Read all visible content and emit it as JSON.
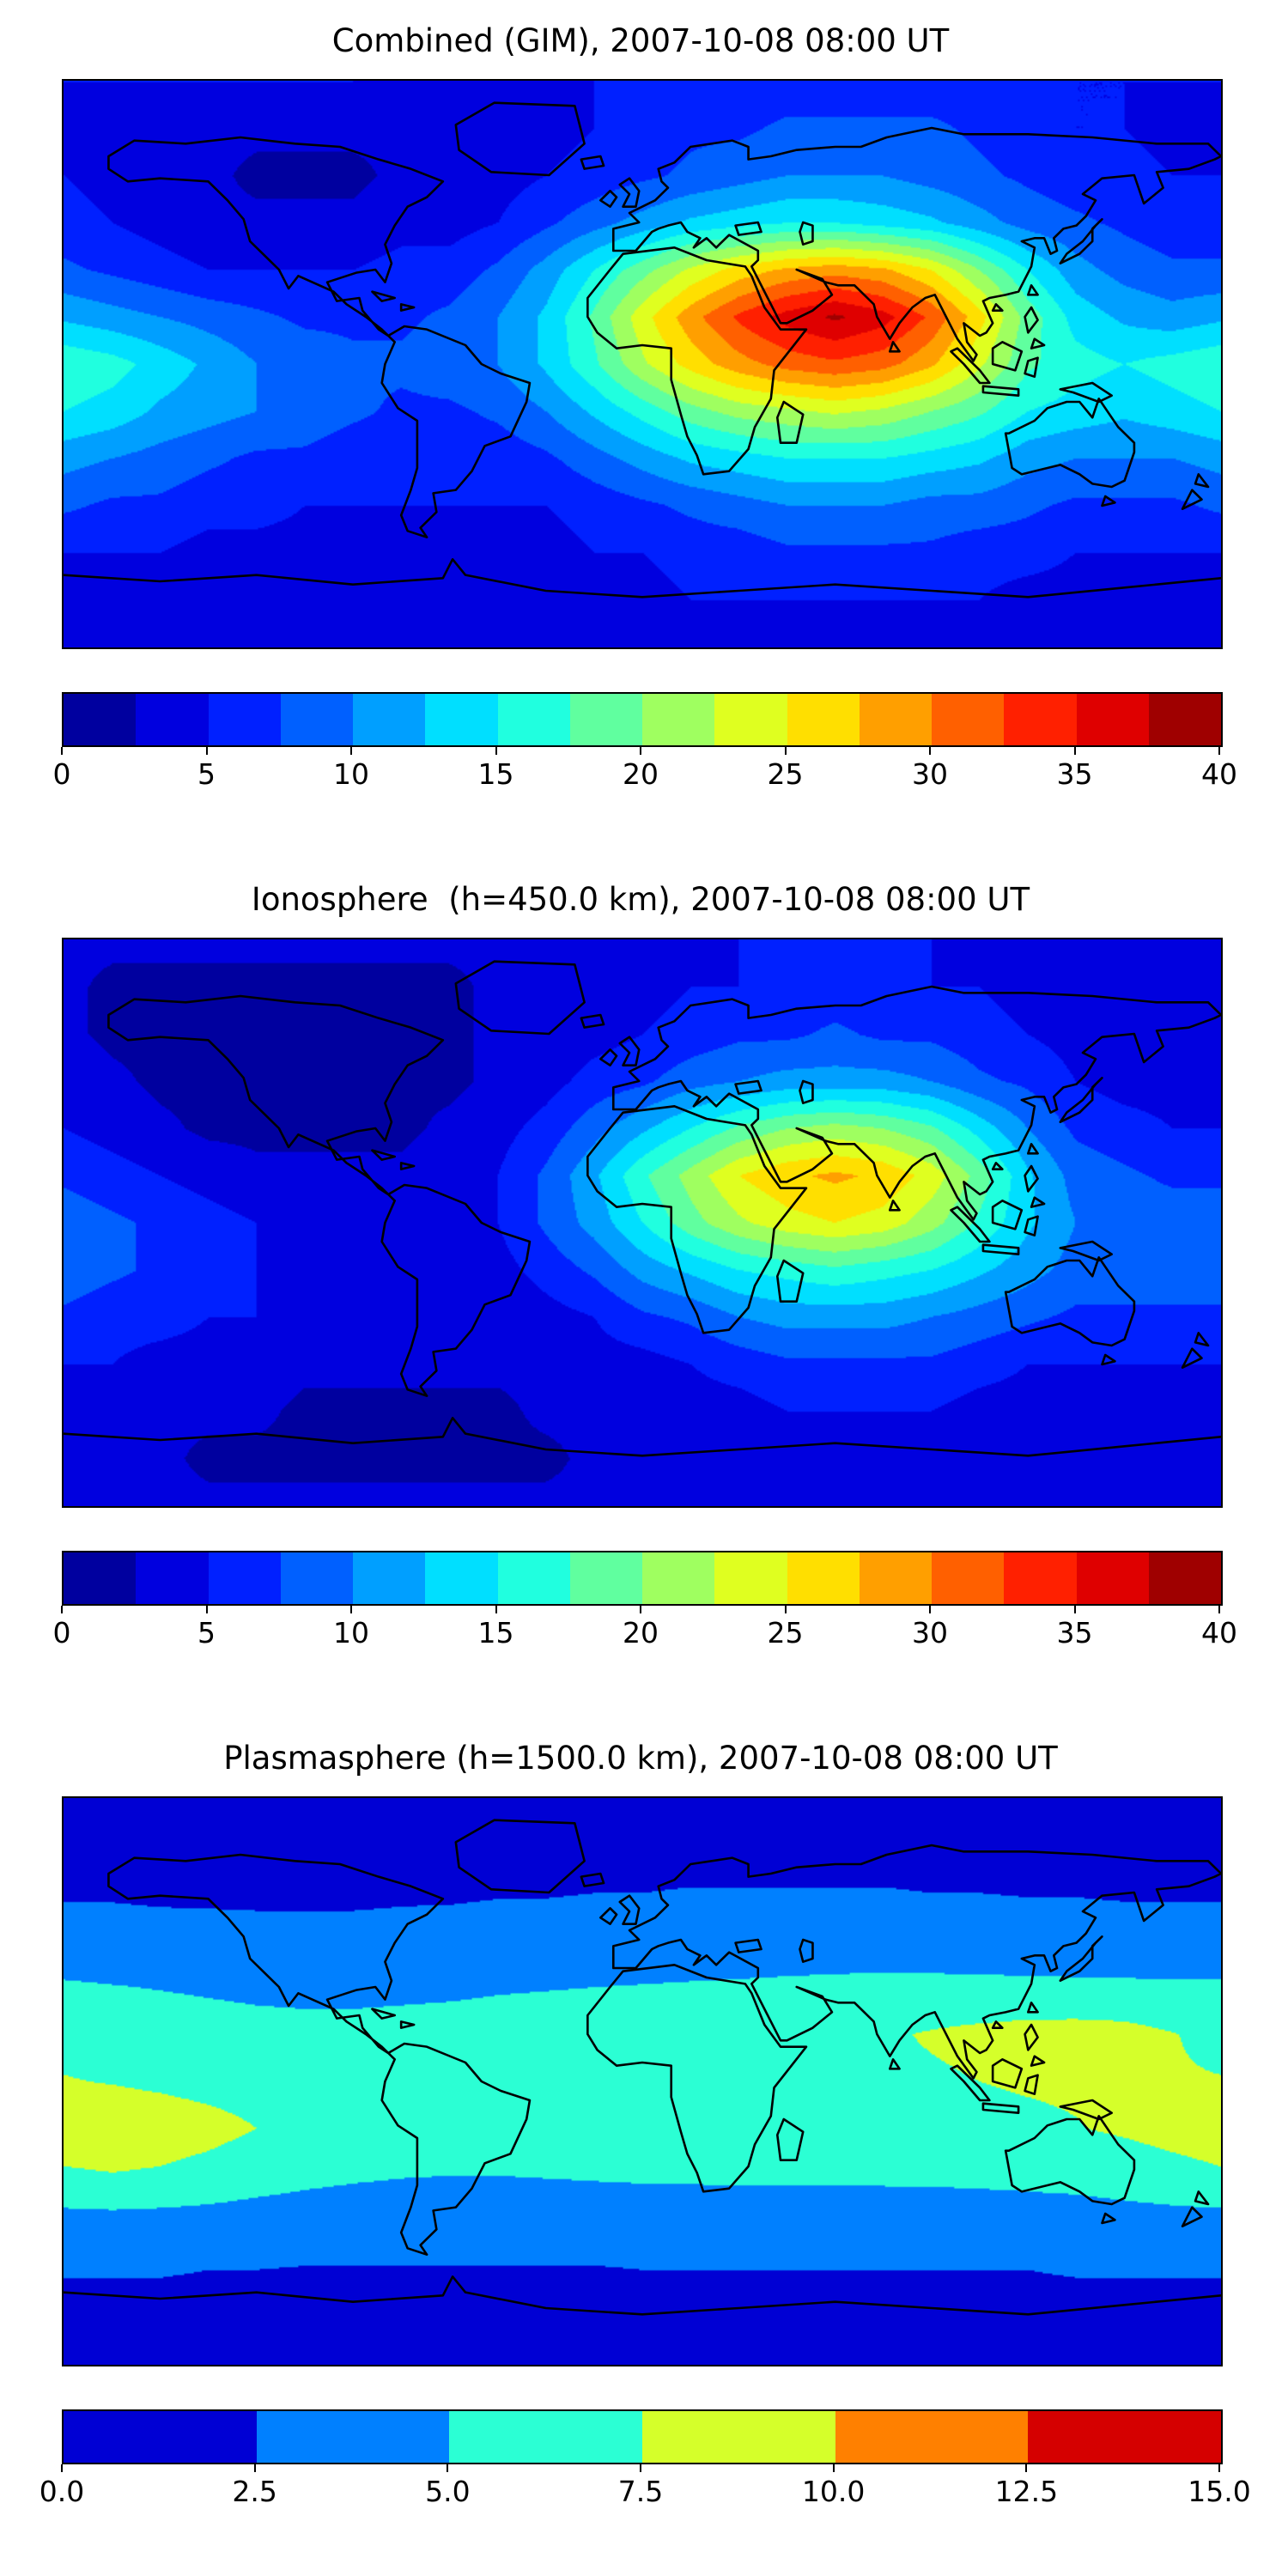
{
  "figure": {
    "background": "#ffffff",
    "map_border_color": "#000000",
    "coastline_color": "#000000"
  },
  "chart_data": [
    {
      "type": "heatmap",
      "title": "Combined (GIM), 2007-10-08 08:00 UT",
      "colormap": "jet",
      "vmin": 0,
      "vmax": 40,
      "levels": 16,
      "lon_range": [
        -180,
        180
      ],
      "lat_range": [
        -90,
        90
      ],
      "lon_step": 15,
      "lat_step": 15,
      "legend_position": "bottom-colorbar",
      "tick_values": [
        0,
        5,
        10,
        15,
        20,
        25,
        30,
        35,
        40
      ],
      "tick_labels": [
        "0",
        "5",
        "10",
        "15",
        "20",
        "25",
        "30",
        "35",
        "40"
      ],
      "grid": [
        [
          5,
          5,
          5,
          5,
          5,
          5,
          5,
          4,
          4,
          4,
          4,
          5,
          5,
          6,
          6,
          6,
          6,
          6,
          6,
          6,
          5,
          5,
          5,
          5,
          5
        ],
        [
          4,
          4,
          4,
          3,
          3,
          3,
          3,
          3,
          3,
          4,
          4,
          5,
          6,
          7,
          7,
          8,
          8,
          8,
          8,
          7,
          6,
          5,
          5,
          4,
          4
        ],
        [
          5,
          4,
          3,
          3,
          2,
          2,
          2,
          3,
          3,
          4,
          5,
          6,
          7,
          8,
          9,
          10,
          10,
          10,
          9,
          8,
          7,
          6,
          6,
          5,
          5
        ],
        [
          6,
          5,
          4,
          3,
          3,
          3,
          3,
          4,
          4,
          5,
          7,
          9,
          11,
          13,
          14,
          15,
          15,
          14,
          13,
          11,
          9,
          8,
          7,
          6,
          6
        ],
        [
          8,
          7,
          6,
          5,
          5,
          5,
          5,
          6,
          6,
          8,
          11,
          15,
          19,
          23,
          26,
          28,
          29,
          28,
          25,
          20,
          15,
          11,
          9,
          8,
          8
        ],
        [
          12,
          11,
          10,
          9,
          8,
          7,
          7,
          7,
          8,
          10,
          13,
          18,
          24,
          29,
          33,
          36,
          38,
          36,
          32,
          26,
          19,
          14,
          12,
          11,
          12
        ],
        [
          17,
          16,
          14,
          12,
          10,
          9,
          8,
          8,
          9,
          10,
          13,
          17,
          22,
          26,
          29,
          31,
          32,
          31,
          28,
          23,
          18,
          16,
          15,
          16,
          17
        ],
        [
          15,
          14,
          12,
          11,
          10,
          9,
          8,
          7,
          7,
          8,
          10,
          13,
          16,
          19,
          21,
          22,
          23,
          22,
          20,
          18,
          15,
          14,
          13,
          14,
          15
        ],
        [
          11,
          10,
          9,
          8,
          7,
          7,
          6,
          6,
          6,
          6,
          7,
          9,
          11,
          13,
          14,
          15,
          15,
          15,
          14,
          13,
          11,
          10,
          10,
          10,
          11
        ],
        [
          8,
          7,
          7,
          6,
          6,
          5,
          5,
          5,
          5,
          5,
          5,
          6,
          7,
          8,
          9,
          10,
          10,
          10,
          9,
          9,
          8,
          7,
          7,
          7,
          8
        ],
        [
          5,
          5,
          5,
          4,
          4,
          4,
          4,
          4,
          4,
          4,
          4,
          5,
          5,
          6,
          6,
          7,
          7,
          7,
          7,
          6,
          6,
          5,
          5,
          5,
          5
        ],
        [
          4,
          4,
          4,
          4,
          3,
          3,
          3,
          3,
          3,
          3,
          4,
          4,
          4,
          5,
          5,
          5,
          5,
          5,
          5,
          5,
          4,
          4,
          4,
          4,
          4
        ],
        [
          4,
          4,
          4,
          4,
          4,
          4,
          4,
          4,
          4,
          4,
          4,
          4,
          4,
          4,
          4,
          4,
          4,
          4,
          4,
          4,
          4,
          4,
          4,
          4,
          4
        ]
      ]
    },
    {
      "type": "heatmap",
      "title": "Ionosphere  (h=450.0 km), 2007-10-08 08:00 UT",
      "colormap": "jet",
      "vmin": 0,
      "vmax": 40,
      "levels": 16,
      "lon_range": [
        -180,
        180
      ],
      "lat_range": [
        -90,
        90
      ],
      "lon_step": 15,
      "lat_step": 15,
      "legend_position": "bottom-colorbar",
      "tick_values": [
        0,
        5,
        10,
        15,
        20,
        25,
        30,
        35,
        40
      ],
      "tick_labels": [
        "0",
        "5",
        "10",
        "15",
        "20",
        "25",
        "30",
        "35",
        "40"
      ],
      "grid": [
        [
          3,
          3,
          3,
          3,
          3,
          3,
          3,
          3,
          3,
          3,
          3,
          4,
          4,
          4,
          5,
          5,
          5,
          5,
          5,
          4,
          4,
          4,
          3,
          3,
          3
        ],
        [
          3,
          2,
          2,
          2,
          2,
          2,
          2,
          2,
          2,
          3,
          3,
          4,
          4,
          5,
          5,
          6,
          6,
          6,
          5,
          5,
          4,
          4,
          3,
          3,
          3
        ],
        [
          3,
          2,
          2,
          1,
          1,
          1,
          1,
          2,
          2,
          3,
          3,
          4,
          5,
          6,
          7,
          7,
          8,
          7,
          7,
          6,
          5,
          4,
          4,
          3,
          3
        ],
        [
          4,
          3,
          2,
          2,
          1,
          1,
          1,
          2,
          2,
          3,
          4,
          6,
          7,
          9,
          10,
          11,
          11,
          11,
          10,
          8,
          7,
          5,
          4,
          4,
          4
        ],
        [
          5,
          4,
          3,
          2,
          2,
          2,
          2,
          2,
          3,
          4,
          6,
          9,
          12,
          15,
          18,
          20,
          21,
          20,
          18,
          14,
          10,
          7,
          6,
          5,
          5
        ],
        [
          7,
          6,
          5,
          4,
          3,
          3,
          3,
          3,
          4,
          5,
          8,
          12,
          17,
          21,
          25,
          27,
          28,
          27,
          24,
          19,
          13,
          9,
          8,
          7,
          7
        ],
        [
          9,
          8,
          7,
          6,
          5,
          4,
          4,
          4,
          4,
          5,
          8,
          11,
          15,
          19,
          22,
          24,
          25,
          24,
          21,
          17,
          13,
          10,
          9,
          9,
          9
        ],
        [
          9,
          8,
          7,
          6,
          5,
          5,
          4,
          4,
          4,
          4,
          6,
          8,
          11,
          13,
          15,
          16,
          17,
          16,
          15,
          13,
          11,
          9,
          9,
          9,
          9
        ],
        [
          7,
          6,
          6,
          5,
          5,
          4,
          4,
          3,
          3,
          3,
          4,
          5,
          7,
          8,
          10,
          11,
          11,
          11,
          10,
          9,
          8,
          7,
          7,
          7,
          7
        ],
        [
          5,
          5,
          4,
          4,
          4,
          3,
          3,
          3,
          3,
          3,
          3,
          4,
          4,
          5,
          6,
          7,
          7,
          7,
          7,
          6,
          5,
          5,
          5,
          5,
          5
        ],
        [
          4,
          3,
          3,
          3,
          3,
          2,
          2,
          2,
          2,
          2,
          3,
          3,
          3,
          4,
          4,
          5,
          5,
          5,
          5,
          4,
          4,
          4,
          4,
          4,
          4
        ],
        [
          3,
          3,
          3,
          2,
          2,
          2,
          2,
          2,
          2,
          2,
          2,
          3,
          3,
          3,
          3,
          3,
          4,
          4,
          3,
          3,
          3,
          3,
          3,
          3,
          3
        ],
        [
          3,
          3,
          3,
          3,
          3,
          3,
          3,
          3,
          3,
          3,
          3,
          3,
          3,
          3,
          3,
          3,
          3,
          3,
          3,
          3,
          3,
          3,
          3,
          3,
          3
        ]
      ]
    },
    {
      "type": "heatmap",
      "title": "Plasmasphere (h=1500.0 km), 2007-10-08 08:00 UT",
      "colormap": "jet",
      "vmin": 0,
      "vmax": 15,
      "levels": 6,
      "lon_range": [
        -180,
        180
      ],
      "lat_range": [
        -90,
        90
      ],
      "lon_step": 15,
      "lat_step": 15,
      "legend_position": "bottom-colorbar",
      "tick_values": [
        0,
        2.5,
        5,
        7.5,
        10,
        12.5,
        15
      ],
      "tick_labels": [
        "0.0",
        "2.5",
        "5.0",
        "7.5",
        "10.0",
        "12.5",
        "15.0"
      ],
      "grid": [
        [
          1.5,
          1.5,
          1.5,
          1.5,
          1.5,
          1.5,
          1.5,
          1.5,
          1.5,
          1.5,
          1.5,
          1.5,
          1.5,
          1.5,
          1.5,
          1.5,
          1.5,
          1.5,
          1.5,
          1.5,
          1.5,
          1.5,
          1.5,
          1.5,
          1.5
        ],
        [
          1.8,
          1.8,
          1.8,
          1.8,
          1.8,
          1.8,
          1.8,
          1.8,
          1.8,
          1.8,
          1.8,
          1.8,
          1.8,
          1.8,
          1.8,
          1.8,
          1.8,
          1.8,
          1.8,
          1.8,
          1.8,
          1.8,
          1.8,
          1.8,
          1.8
        ],
        [
          2.3,
          2.3,
          2.2,
          2.2,
          2.2,
          2.2,
          2.2,
          2.3,
          2.3,
          2.4,
          2.4,
          2.5,
          2.5,
          2.6,
          2.6,
          2.6,
          2.6,
          2.6,
          2.5,
          2.5,
          2.4,
          2.4,
          2.3,
          2.3,
          2.3
        ],
        [
          3.4,
          3.3,
          3.2,
          3.1,
          3.0,
          3.0,
          3.0,
          3.0,
          3.1,
          3.2,
          3.3,
          3.4,
          3.5,
          3.6,
          3.6,
          3.7,
          3.7,
          3.7,
          3.6,
          3.6,
          3.5,
          3.5,
          3.4,
          3.4,
          3.4
        ],
        [
          5.3,
          5.1,
          4.9,
          4.7,
          4.5,
          4.4,
          4.4,
          4.5,
          4.6,
          4.8,
          4.9,
          5.0,
          5.1,
          5.2,
          5.3,
          5.4,
          5.5,
          5.6,
          5.6,
          5.5,
          5.5,
          5.4,
          5.4,
          5.3,
          5.3
        ],
        [
          6.9,
          6.6,
          6.3,
          6.0,
          5.8,
          5.7,
          5.7,
          5.8,
          5.9,
          6.0,
          6.1,
          6.2,
          6.3,
          6.4,
          6.5,
          6.6,
          6.8,
          7.2,
          7.7,
          8.1,
          8.4,
          8.5,
          8.3,
          7.6,
          6.9
        ],
        [
          7.6,
          7.4,
          7.1,
          6.8,
          6.6,
          6.4,
          6.3,
          6.3,
          6.4,
          6.5,
          6.6,
          6.6,
          6.7,
          6.7,
          6.8,
          6.8,
          6.9,
          7.0,
          7.2,
          7.5,
          7.7,
          7.8,
          7.8,
          7.7,
          7.6
        ],
        [
          8.7,
          8.9,
          8.7,
          8.2,
          7.5,
          6.9,
          6.5,
          6.3,
          6.3,
          6.3,
          6.4,
          6.5,
          6.5,
          6.6,
          6.6,
          6.6,
          6.7,
          6.7,
          6.8,
          6.9,
          7.1,
          7.4,
          7.8,
          8.3,
          8.7
        ],
        [
          7.2,
          7.4,
          7.2,
          6.7,
          6.1,
          5.6,
          5.3,
          5.1,
          5.0,
          5.0,
          5.1,
          5.2,
          5.3,
          5.3,
          5.4,
          5.4,
          5.4,
          5.4,
          5.4,
          5.5,
          5.6,
          5.8,
          6.2,
          6.7,
          7.2
        ],
        [
          4.0,
          4.1,
          4.0,
          3.9,
          3.7,
          3.6,
          3.5,
          3.4,
          3.4,
          3.4,
          3.4,
          3.5,
          3.5,
          3.6,
          3.6,
          3.6,
          3.6,
          3.6,
          3.7,
          3.7,
          3.8,
          3.8,
          3.9,
          4.0,
          4.0
        ],
        [
          2.6,
          2.6,
          2.6,
          2.5,
          2.5,
          2.4,
          2.4,
          2.4,
          2.4,
          2.4,
          2.4,
          2.4,
          2.5,
          2.5,
          2.5,
          2.5,
          2.5,
          2.5,
          2.5,
          2.5,
          2.5,
          2.6,
          2.6,
          2.6,
          2.6
        ],
        [
          2.0,
          2.0,
          2.0,
          2.0,
          2.0,
          2.0,
          2.0,
          2.0,
          2.0,
          2.0,
          2.0,
          2.0,
          2.0,
          2.0,
          2.0,
          2.0,
          2.0,
          2.0,
          2.0,
          2.0,
          2.0,
          2.0,
          2.0,
          2.0,
          2.0
        ],
        [
          1.7,
          1.7,
          1.7,
          1.7,
          1.7,
          1.7,
          1.7,
          1.7,
          1.7,
          1.7,
          1.7,
          1.7,
          1.7,
          1.7,
          1.7,
          1.7,
          1.7,
          1.7,
          1.7,
          1.7,
          1.7,
          1.7,
          1.7,
          1.7,
          1.7
        ]
      ]
    }
  ]
}
